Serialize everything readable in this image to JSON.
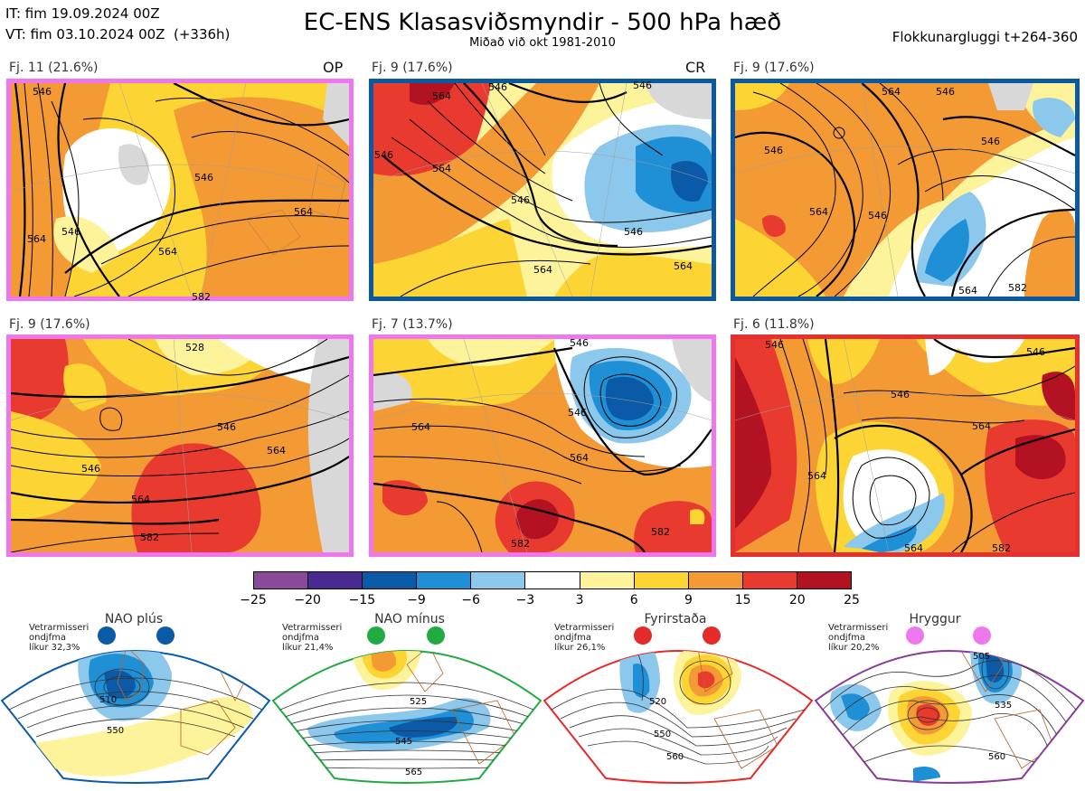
{
  "header": {
    "it_line": "IT: fim 19.09.2024 00Z",
    "vt_line": "VT: fim 03.10.2024 00Z  (+336h)",
    "title": "EC-ENS Klasasviðsmyndir - 500 hPa hæð",
    "subtitle": "Miðað við okt 1981-2010",
    "window": "Flokkunargluggi t+264-360"
  },
  "panels": [
    {
      "label": "Fj. 11 (21.6%)",
      "tag": "OP",
      "border_color": "#ee77ee",
      "contours": [
        "546",
        "564",
        "564",
        "546",
        "564",
        "546",
        "582"
      ]
    },
    {
      "label": "Fj. 9 (17.6%)",
      "tag": "CR",
      "border_color": "#0b5aa0",
      "contours": [
        "564",
        "546",
        "546",
        "546",
        "564",
        "546",
        "564",
        "546",
        "564"
      ]
    },
    {
      "label": "Fj. 9 (17.6%)",
      "tag": "",
      "border_color": "#0b5aa0",
      "contours": [
        "546",
        "564",
        "546",
        "564",
        "546",
        "546",
        "564",
        "582"
      ]
    },
    {
      "label": "Fj. 9 (17.6%)",
      "tag": "",
      "border_color": "#ee77ee",
      "contours": [
        "528",
        "546",
        "564",
        "546",
        "564",
        "582"
      ]
    },
    {
      "label": "Fj. 7 (13.7%)",
      "tag": "",
      "border_color": "#ee77ee",
      "contours": [
        "546",
        "564",
        "546",
        "564",
        "582",
        "582"
      ]
    },
    {
      "label": "Fj. 6 (11.8%)",
      "tag": "",
      "border_color": "#e53030",
      "contours": [
        "546",
        "564",
        "546",
        "564",
        "546",
        "564",
        "582"
      ]
    }
  ],
  "colorbar": {
    "ticks": [
      "−25",
      "−20",
      "−15",
      "−9",
      "−6",
      "−3",
      "3",
      "6",
      "9",
      "15",
      "20",
      "25"
    ],
    "colors": [
      "#8a4a9a",
      "#4a2a90",
      "#0b5aa8",
      "#1f8fd6",
      "#8cc7ec",
      "#ffffff",
      "#fdf39a",
      "#fcd434",
      "#f39a34",
      "#e83a2e",
      "#b31222"
    ]
  },
  "regimes": [
    {
      "title": "NAO plús",
      "prob": "Vetrarmisseri\nondjfma\nlíkur 32,3%",
      "dot_color": "#0b5aa8",
      "border_color": "#0b5aa8",
      "contours": [
        "510",
        "550"
      ]
    },
    {
      "title": "NAO mínus",
      "prob": "Vetrarmisseri\nondjfma\nlíkur 21,4%",
      "dot_color": "#22aa44",
      "border_color": "#22aa44",
      "contours": [
        "525",
        "545",
        "565"
      ]
    },
    {
      "title": "Fyrirstaða",
      "prob": "Vetrarmisseri\nondjfma\nlíkur 26,1%",
      "dot_color": "#e52a2a",
      "border_color": "#e52a2a",
      "contours": [
        "520",
        "550",
        "560"
      ]
    },
    {
      "title": "Hryggur",
      "prob": "Vetrarmisseri\nondjfma\nlíkur 20,2%",
      "dot_color": "#ee77ee",
      "border_color": "#8a3a9a",
      "contours": [
        "505",
        "535",
        "560"
      ]
    }
  ]
}
